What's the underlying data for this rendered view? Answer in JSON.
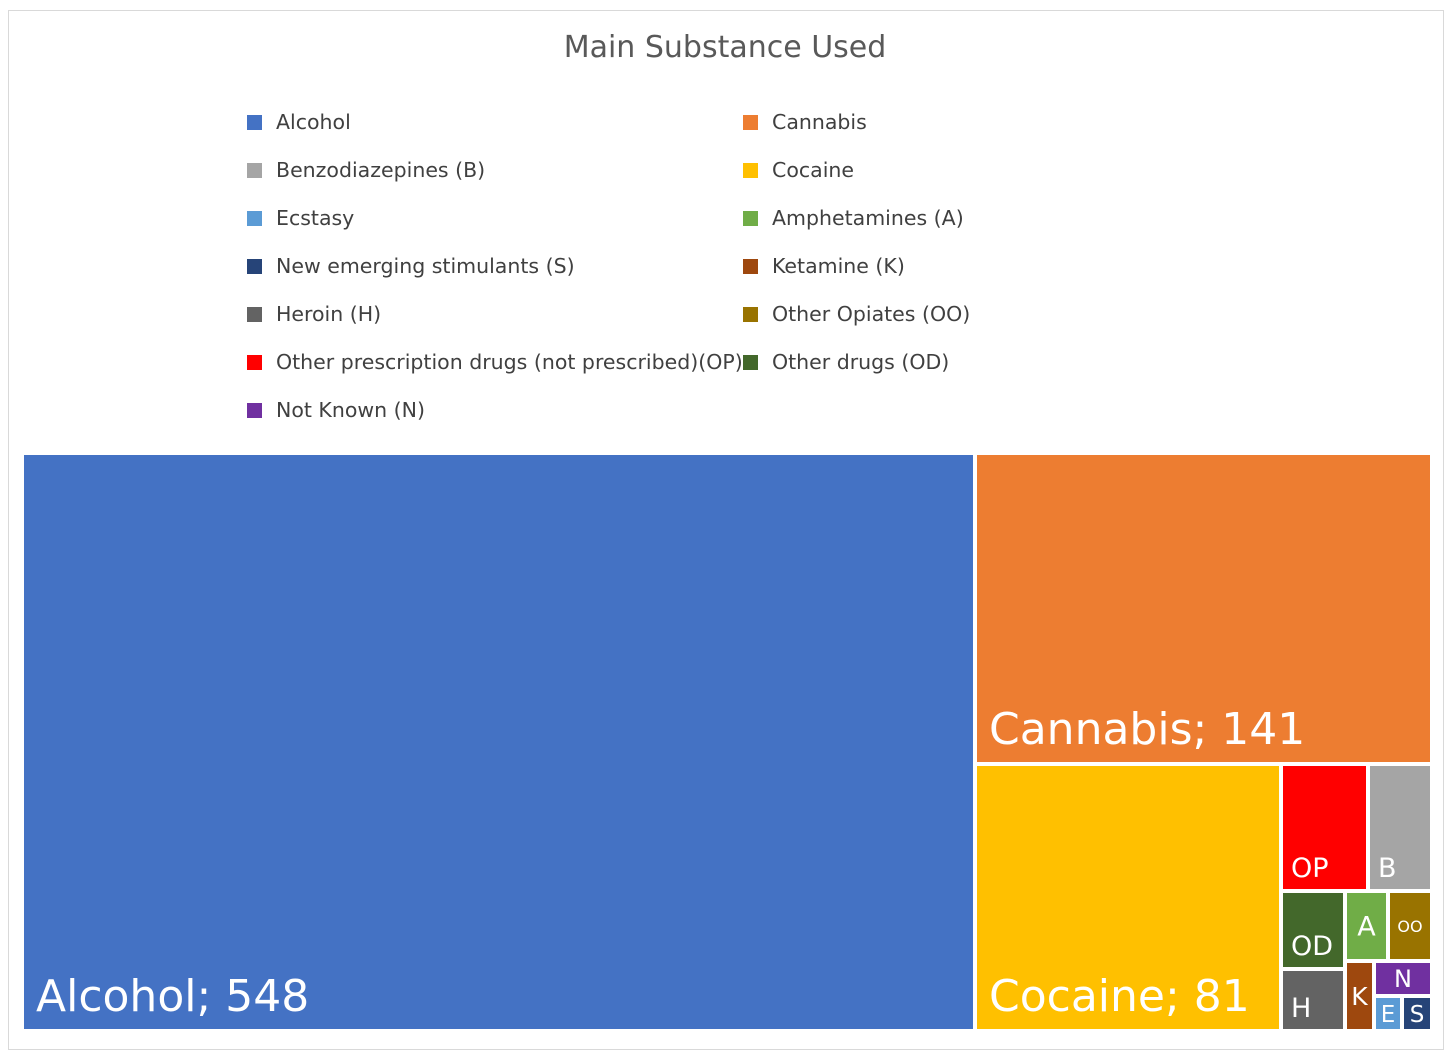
{
  "chart_data": {
    "type": "treemap",
    "title": "Main Substance Used",
    "legend": [
      {
        "name": "Alcohol",
        "color": "#4472C4"
      },
      {
        "name": "Cannabis",
        "color": "#ED7D31"
      },
      {
        "name": "Benzodiazepines (B)",
        "color": "#A5A5A5"
      },
      {
        "name": "Cocaine",
        "color": "#FFC000"
      },
      {
        "name": "Ecstasy",
        "color": "#5B9BD5"
      },
      {
        "name": "Amphetamines (A)",
        "color": "#70AD47"
      },
      {
        "name": "New emerging stimulants (S)",
        "color": "#264478"
      },
      {
        "name": "Ketamine (K)",
        "color": "#9E480E"
      },
      {
        "name": "Heroin (H)",
        "color": "#636363"
      },
      {
        "name": "Other Opiates (OO)",
        "color": "#997300"
      },
      {
        "name": "Other prescription drugs (not prescribed)(OP)",
        "color": "#FF0000"
      },
      {
        "name": "Other drugs (OD)",
        "color": "#43682B"
      },
      {
        "name": "Not Known (N)",
        "color": "#7030A0"
      }
    ],
    "tiles": [
      {
        "name": "Alcohol",
        "label": "Alcohol; 548",
        "value": 548,
        "color": "#4472C4"
      },
      {
        "name": "Cannabis",
        "label": "Cannabis; 141",
        "value": 141,
        "color": "#ED7D31"
      },
      {
        "name": "Cocaine",
        "label": "Cocaine; 81",
        "value": 81,
        "color": "#FFC000"
      },
      {
        "name": "Other prescription drugs (not prescribed)(OP)",
        "label": "OP",
        "value": 17,
        "color": "#FF0000"
      },
      {
        "name": "Benzodiazepines (B)",
        "label": "B",
        "value": 13,
        "color": "#A5A5A5"
      },
      {
        "name": "Other drugs (OD)",
        "label": "OD",
        "value": 10,
        "color": "#43682B"
      },
      {
        "name": "Amphetamines (A)",
        "label": "A",
        "value": 6,
        "color": "#70AD47"
      },
      {
        "name": "Other Opiates (OO)",
        "label": "OO",
        "value": 6,
        "color": "#997300"
      },
      {
        "name": "Heroin (H)",
        "label": "H",
        "value": 9,
        "color": "#636363"
      },
      {
        "name": "Ketamine (K)",
        "label": "K",
        "value": 4,
        "color": "#9E480E"
      },
      {
        "name": "Not Known (N)",
        "label": "N",
        "value": 3,
        "color": "#7030A0"
      },
      {
        "name": "Ecstasy",
        "label": "E",
        "value": 1.5,
        "color": "#5B9BD5"
      },
      {
        "name": "New emerging stimulants (S)",
        "label": "S",
        "value": 1.5,
        "color": "#264478"
      }
    ]
  }
}
